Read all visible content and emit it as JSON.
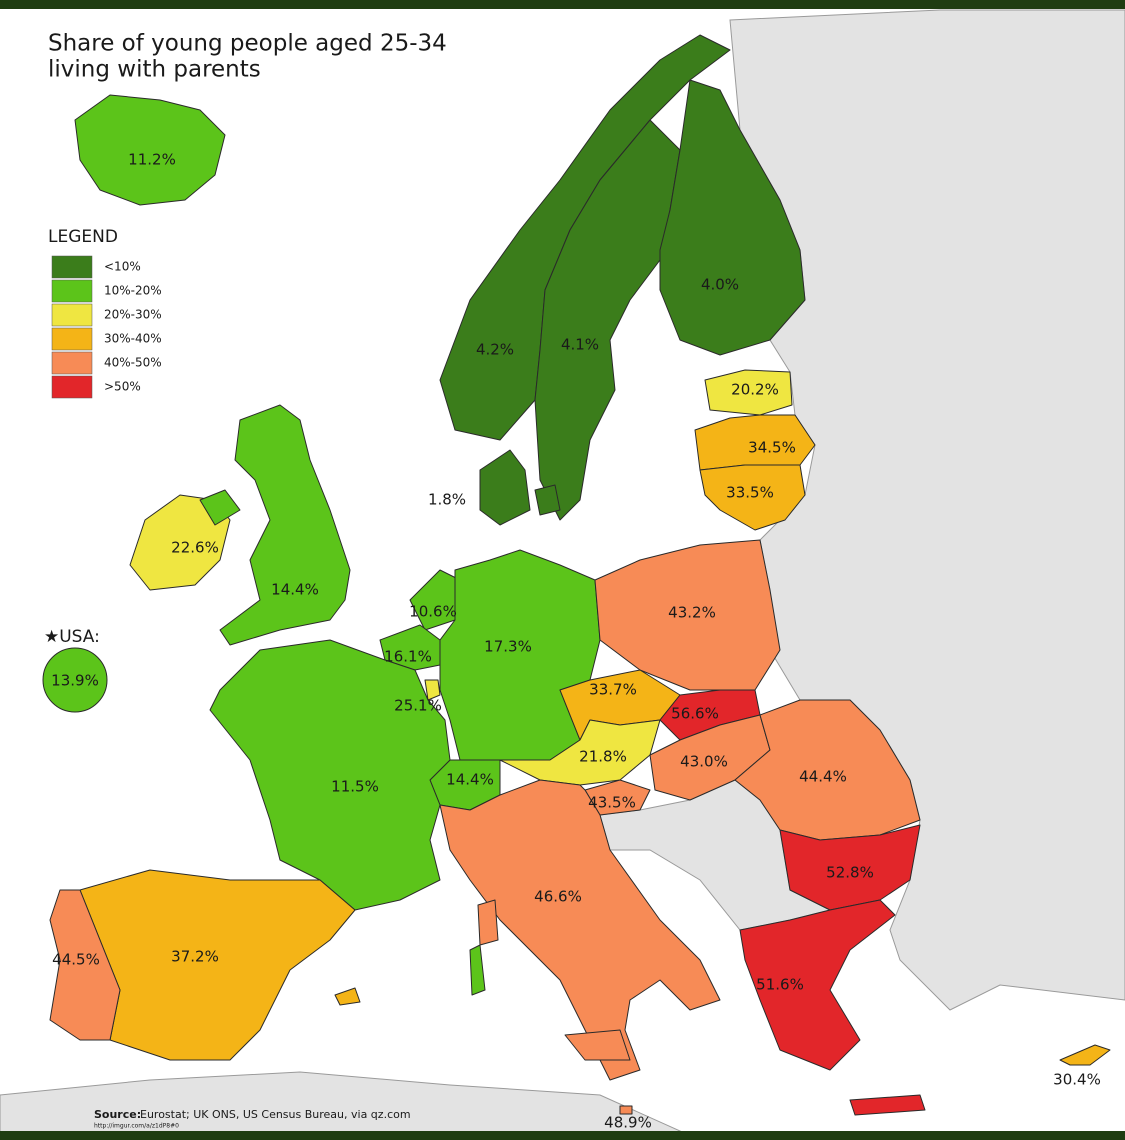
{
  "header": {
    "title_line1": "Share of young people aged 25-34",
    "title_line2": "living with parents"
  },
  "legend": {
    "title": "LEGEND",
    "items": [
      {
        "label": "<10%",
        "color": "#3b7d1b"
      },
      {
        "label": "10%-20%",
        "color": "#5cc41a"
      },
      {
        "label": "20%-30%",
        "color": "#efe641"
      },
      {
        "label": "30%-40%",
        "color": "#f4b417"
      },
      {
        "label": "40%-50%",
        "color": "#f78b56"
      },
      {
        "label": ">50%",
        "color": "#e2262a"
      }
    ]
  },
  "usa": {
    "label": "★USA:",
    "value": "13.9%",
    "color": "#5cc41a"
  },
  "regions": [
    {
      "value": "11.2%",
      "color": "#5cc41a"
    },
    {
      "value": "4.2%",
      "color": "#3b7d1b"
    },
    {
      "value": "4.1%",
      "color": "#3b7d1b"
    },
    {
      "value": "4.0%",
      "color": "#3b7d1b"
    },
    {
      "value": "20.2%",
      "color": "#efe641"
    },
    {
      "value": "34.5%",
      "color": "#f4b417"
    },
    {
      "value": "33.5%",
      "color": "#f4b417"
    },
    {
      "value": "1.8%",
      "color": "#3b7d1b"
    },
    {
      "value": "22.6%",
      "color": "#efe641"
    },
    {
      "value": "14.4%",
      "color": "#5cc41a"
    },
    {
      "value": "10.6%",
      "color": "#5cc41a"
    },
    {
      "value": "16.1%",
      "color": "#5cc41a"
    },
    {
      "value": "25.1%",
      "color": "#efe641"
    },
    {
      "value": "17.3%",
      "color": "#5cc41a"
    },
    {
      "value": "43.2%",
      "color": "#f78b56"
    },
    {
      "value": "33.7%",
      "color": "#f4b417"
    },
    {
      "value": "56.6%",
      "color": "#e2262a"
    },
    {
      "value": "21.8%",
      "color": "#efe641"
    },
    {
      "value": "43.0%",
      "color": "#f78b56"
    },
    {
      "value": "44.4%",
      "color": "#f78b56"
    },
    {
      "value": "14.4%",
      "color": "#5cc41a"
    },
    {
      "value": "11.5%",
      "color": "#5cc41a"
    },
    {
      "value": "43.5%",
      "color": "#f78b56"
    },
    {
      "value": "46.6%",
      "color": "#f78b56"
    },
    {
      "value": "52.8%",
      "color": "#e2262a"
    },
    {
      "value": "51.6%",
      "color": "#e2262a"
    },
    {
      "value": "37.2%",
      "color": "#f4b417"
    },
    {
      "value": "44.5%",
      "color": "#f78b56"
    },
    {
      "value": "30.4%",
      "color": "#f4b417"
    },
    {
      "value": "48.9%",
      "color": "#f78b56"
    }
  ],
  "footer": {
    "source_label": "Source:",
    "source": "Eurostat; UK ONS, US Census Bureau, via qz.com",
    "url": "http://imgur.com/a/z1dP8#0"
  }
}
